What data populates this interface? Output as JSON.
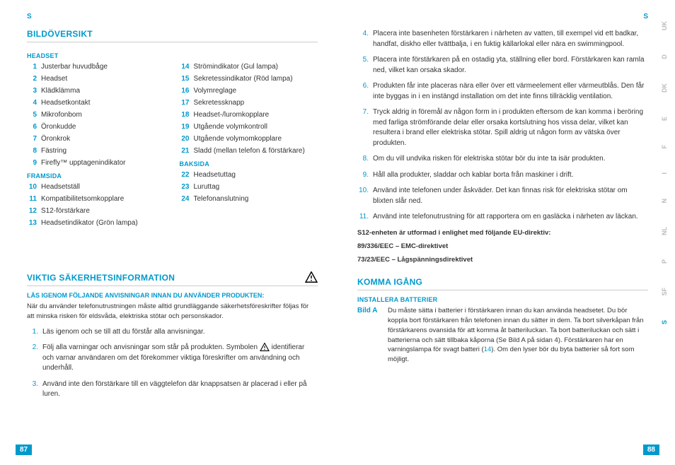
{
  "header_left": "S",
  "header_right": "S",
  "page_left_num": "87",
  "page_right_num": "88",
  "side_tabs": [
    "UK",
    "D",
    "DK",
    "E",
    "F",
    "I",
    "N",
    "NL",
    "P",
    "SF",
    "S"
  ],
  "active_tab_index": 10,
  "bildoversikt": {
    "title": "BILDÖVERSIKT",
    "headset": {
      "title": "HEADSET",
      "items": [
        {
          "n": "1",
          "t": "Justerbar huvudbåge"
        },
        {
          "n": "2",
          "t": "Headset"
        },
        {
          "n": "3",
          "t": "Klädklämma"
        },
        {
          "n": "4",
          "t": "Headsetkontakt"
        },
        {
          "n": "5",
          "t": "Mikrofonbom"
        },
        {
          "n": "6",
          "t": "Öronkudde"
        },
        {
          "n": "7",
          "t": "Öronkrok"
        },
        {
          "n": "8",
          "t": "Fästring"
        },
        {
          "n": "9",
          "t": "Firefly™ upptagenindikator"
        }
      ]
    },
    "col2_items": [
      {
        "n": "14",
        "t": "Strömindikator (Gul lampa)"
      },
      {
        "n": "15",
        "t": "Sekretessindikator (Röd lampa)"
      },
      {
        "n": "16",
        "t": "Volymreglage"
      },
      {
        "n": "17",
        "t": "Sekretessknapp"
      },
      {
        "n": "18",
        "t": "Headset-/luromkopplare"
      },
      {
        "n": "19",
        "t": "Utgående volymkontroll"
      },
      {
        "n": "20",
        "t": "Utgående volymomkopplare"
      },
      {
        "n": "21",
        "t": "Sladd (mellan telefon & förstärkare)"
      }
    ],
    "framsida": {
      "title": "FRAMSIDA",
      "items": [
        {
          "n": "10",
          "t": "Headsetställ"
        },
        {
          "n": "11",
          "t": "Kompatibilitetsomkopplare"
        },
        {
          "n": "12",
          "t": "S12-förstärkare"
        },
        {
          "n": "13",
          "t": "Headsetindikator (Grön lampa)"
        }
      ]
    },
    "baksida": {
      "title": "BAKSIDA",
      "items": [
        {
          "n": "22",
          "t": "Headsetuttag"
        },
        {
          "n": "23",
          "t": "Luruttag"
        },
        {
          "n": "24",
          "t": "Telefonanslutning"
        }
      ]
    }
  },
  "viktig": {
    "title": "VIKTIG SÄKERHETSINFORMATION",
    "intro": "LÄS IGENOM FÖLJANDE ANVISNINGAR INNAN DU ANVÄNDER PRODUKTEN:",
    "body": "När du använder telefonutrustningen måste alltid grundläggande säkerhetsföreskrifter följas för att minska risken för eldsvåda, elektriska stötar och personskador.",
    "items": [
      {
        "n": "1.",
        "t": "Läs igenom och se till att du förstår alla anvisningar."
      },
      {
        "n": "2.",
        "t": "Följ alla varningar och anvisningar som står på produkten. Symbolen ⚠ identifierar och varnar användaren om det förekommer viktiga föreskrifter om användning och underhåll."
      },
      {
        "n": "3.",
        "t": "Använd inte den förstärkare till en väggtelefon där knappsatsen är placerad i eller på luren."
      }
    ]
  },
  "right_items": [
    {
      "n": "4.",
      "t": "Placera inte basenheten förstärkaren i närheten av vatten, till exempel vid ett badkar, handfat, diskho eller tvättbalja, i en fuktig källarlokal eller nära en swimmingpool."
    },
    {
      "n": "5.",
      "t": "Placera inte förstärkaren på en ostadig yta, ställning eller bord. Förstärkaren kan ramla ned, vilket kan orsaka skador."
    },
    {
      "n": "6.",
      "t": "Produkten får inte placeras nära eller över ett värmeelement eller värmeutblås. Den får inte byggas in i en instängd installation om det inte finns tillräcklig ventilation."
    },
    {
      "n": "7.",
      "t": "Tryck aldrig in föremål av någon form in i produkten eftersom de kan komma i beröring med farliga strömförande delar eller orsaka kortslutning hos vissa delar, vilket kan resultera i brand eller elektriska stötar. Spill aldrig ut någon form av vätska över produkten."
    },
    {
      "n": "8.",
      "t": "Om du vill undvika risken för elektriska stötar bör du inte ta isär produkten."
    },
    {
      "n": "9.",
      "t": "Håll alla produkter, sladdar och kablar borta från maskiner i drift."
    },
    {
      "n": "10.",
      "t": "Använd inte telefonen under åskväder. Det kan finnas risk för elektriska stötar om blixten slår ned."
    },
    {
      "n": "11.",
      "t": "Använd inte telefonutrustning för att rapportera om en gasläcka i närheten av läckan."
    }
  ],
  "directive": {
    "l1": "S12-enheten är utformad i enlighet med följande EU-direktiv:",
    "l2": "89/336/EEC – EMC-direktivet",
    "l3": "73/23/EEC – Lågspänningsdirektivet"
  },
  "komma": {
    "title": "KOMMA IGÅNG",
    "sub": "INSTALLERA BATTERIER",
    "bild_label": "Bild A",
    "bild_text": "Du måste sätta i batterier i förstärkaren innan du kan använda headsetet. Du bör koppla bort förstärkaren från telefonen innan du sätter in dem. Ta bort silverkåpan från förstärkarens ovansida för att komma åt batteriluckan. Ta bort batteriluckan och sätt i batterierna och sätt tillbaka kåporna (Se Bild A på sidan 4). Förstärkaren har en varningslampa för svagt batteri (14). Om den lyser bör du byta batterier så fort som möjligt.",
    "highlight_num": "14"
  }
}
